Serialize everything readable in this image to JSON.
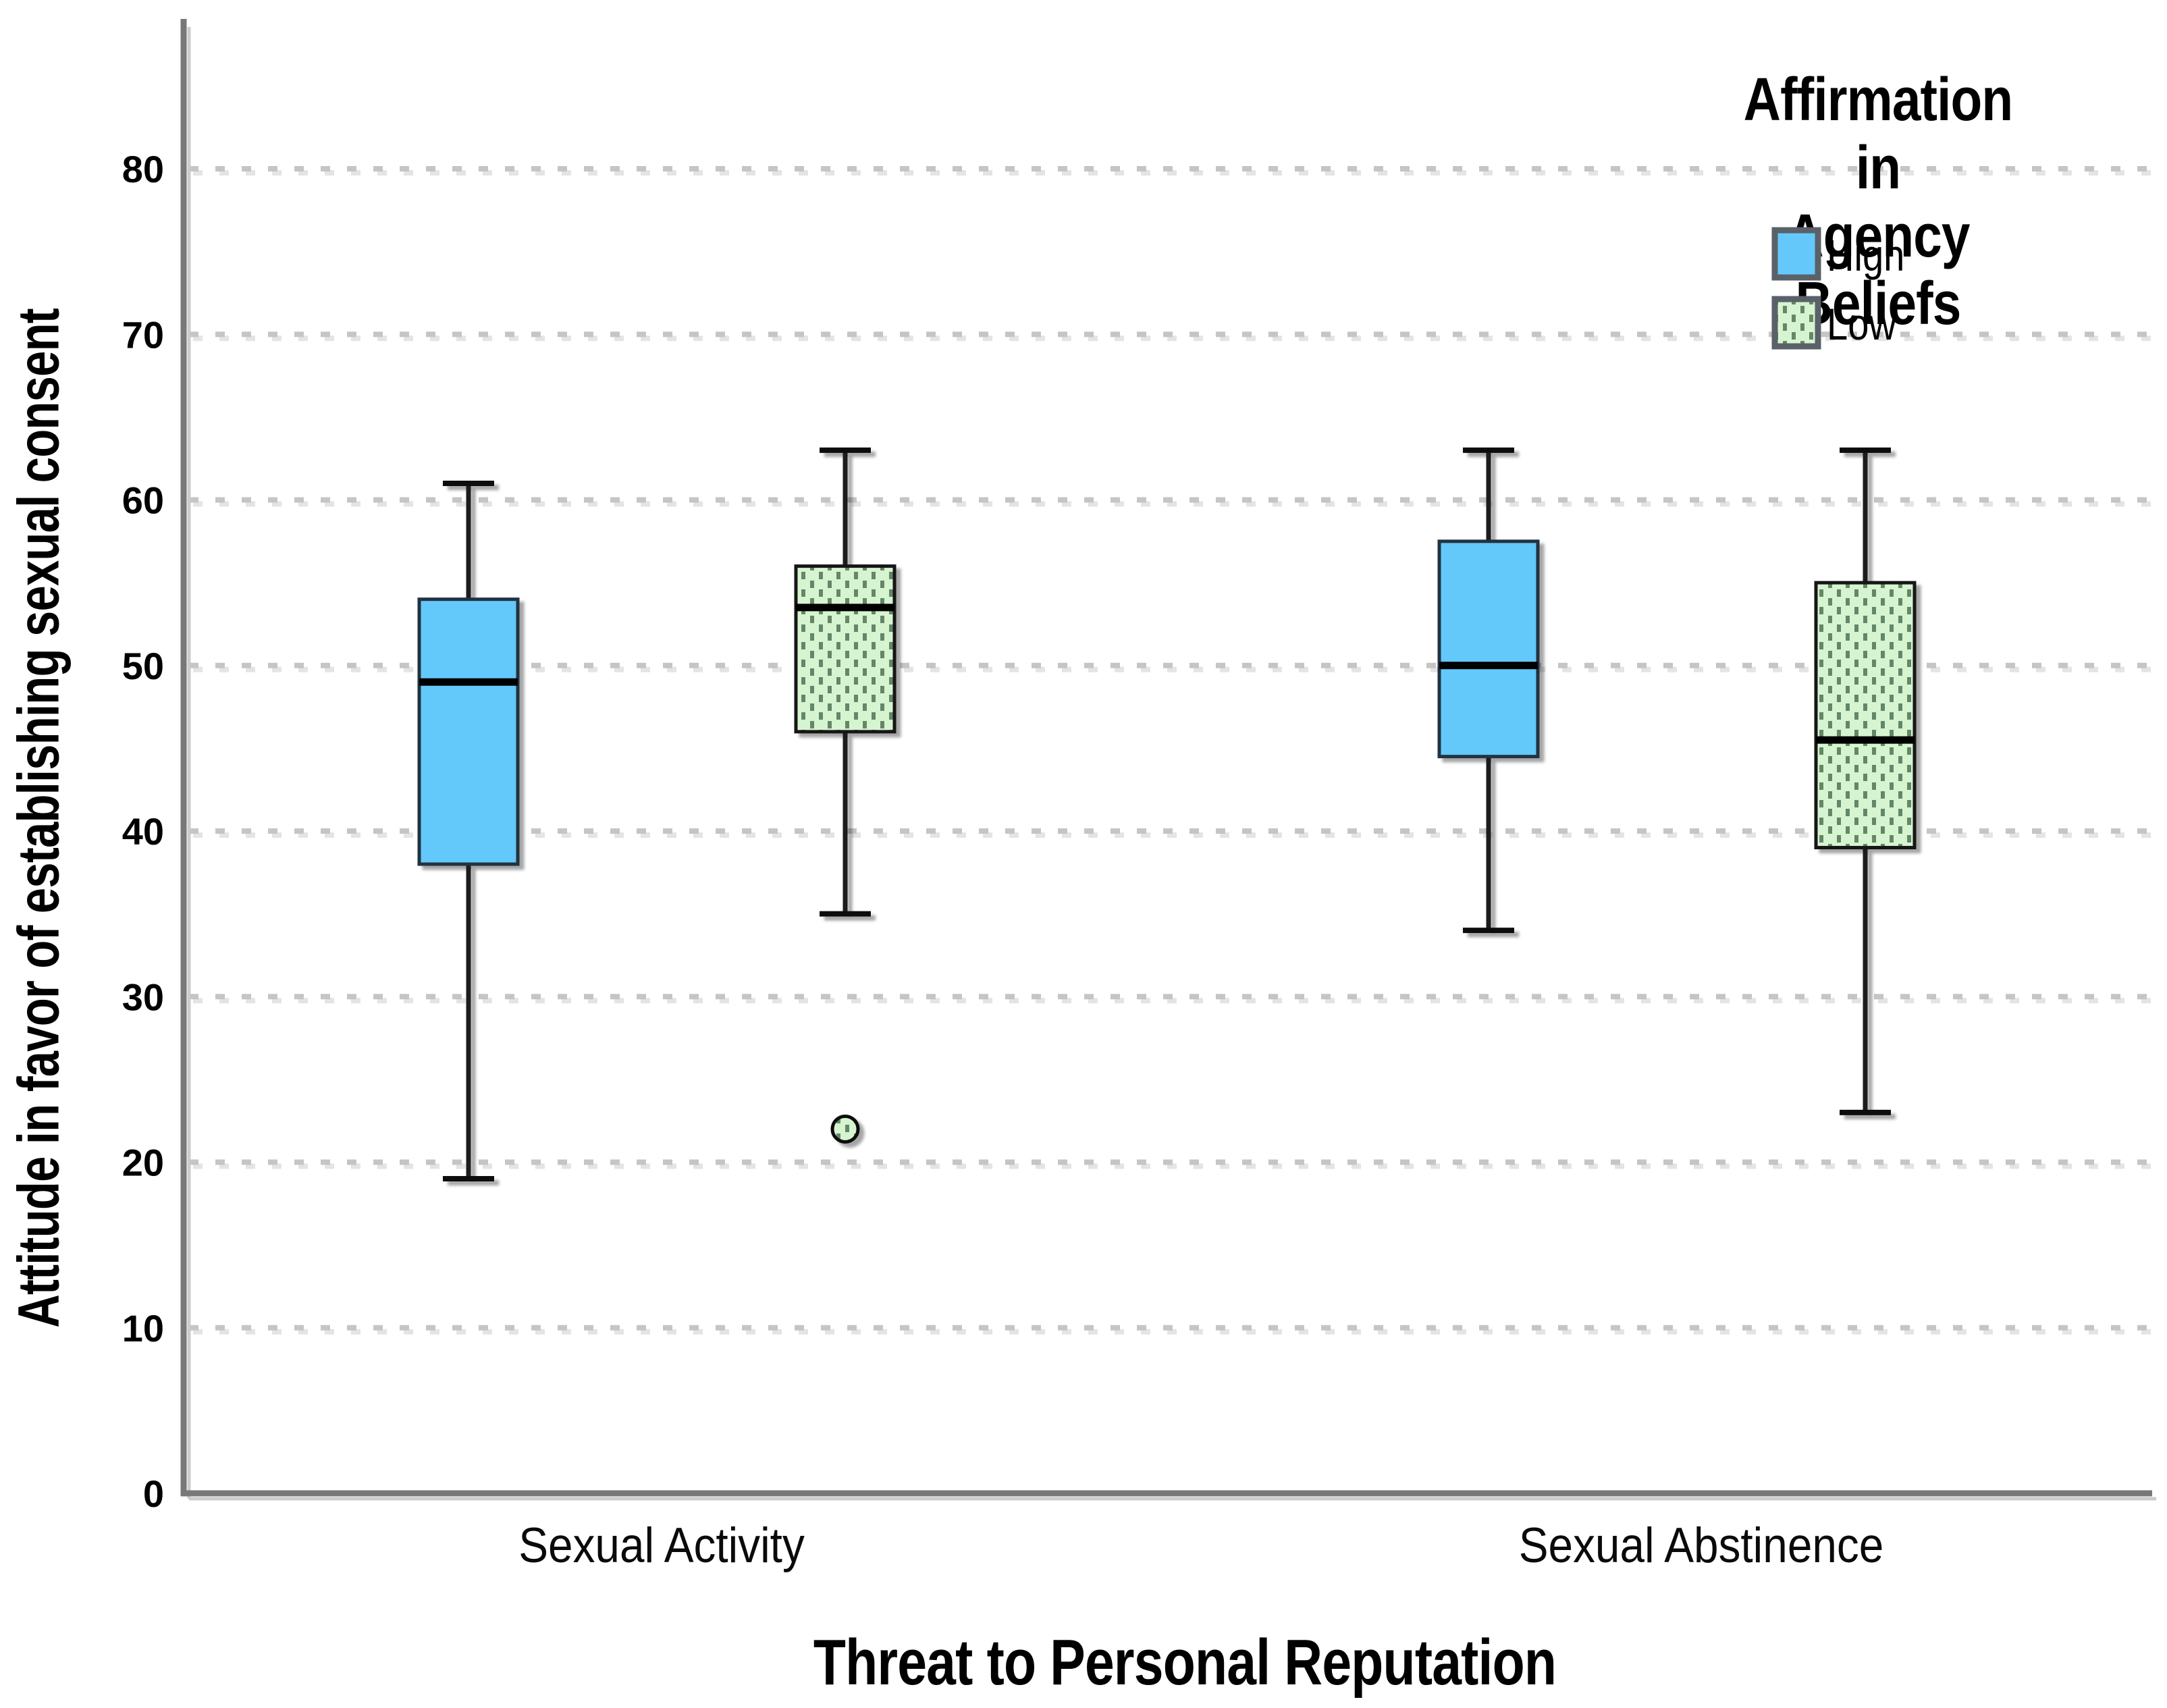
{
  "figure": {
    "background": "#ffffff"
  },
  "chart_data": {
    "type": "boxplot",
    "xlabel": "Threat to Personal Reputation",
    "ylabel": "Attitude in favor of establishing sexual consent",
    "categories": [
      "Sexual Activity",
      "Sexual Abstinence"
    ],
    "yticks": [
      0,
      10,
      20,
      30,
      40,
      50,
      60,
      70,
      80
    ],
    "ylim": [
      0,
      89
    ],
    "grid": {
      "horizontal": true,
      "style": "dashed",
      "color": "#c5c5c5"
    },
    "axis_color": "#787878",
    "text_color": "#000000",
    "legend": {
      "title": "Affirmation in\nAgency Beliefs",
      "position": "top-right",
      "swatch_border": "#5a6168",
      "entries": [
        {
          "label": "High",
          "fill": "#64C8FA",
          "pattern": "solid"
        },
        {
          "label": "Low",
          "fill": "#D7F4D1",
          "pattern": "dotted",
          "pattern_color": "#638767"
        }
      ]
    },
    "series": [
      {
        "name": "High",
        "fill": "#64C8FA",
        "pattern": "solid",
        "border": "#223240",
        "boxes": [
          {
            "category": "Sexual Activity",
            "whisker_low": 19,
            "q1": 38,
            "median": 49,
            "q3": 54,
            "whisker_high": 61,
            "outliers": []
          },
          {
            "category": "Sexual Abstinence",
            "whisker_low": 34,
            "q1": 44.5,
            "median": 50,
            "q3": 57.5,
            "whisker_high": 63,
            "outliers": []
          }
        ]
      },
      {
        "name": "Low",
        "fill": "#D7F4D1",
        "pattern": "dotted",
        "pattern_color": "#638767",
        "border": "#141414",
        "boxes": [
          {
            "category": "Sexual Activity",
            "whisker_low": 35,
            "q1": 46,
            "median": 53.5,
            "q3": 56,
            "whisker_high": 63,
            "outliers": [
              22
            ]
          },
          {
            "category": "Sexual Abstinence",
            "whisker_low": 23,
            "q1": 39,
            "median": 45.5,
            "q3": 55,
            "whisker_high": 63,
            "outliers": []
          }
        ]
      }
    ]
  }
}
